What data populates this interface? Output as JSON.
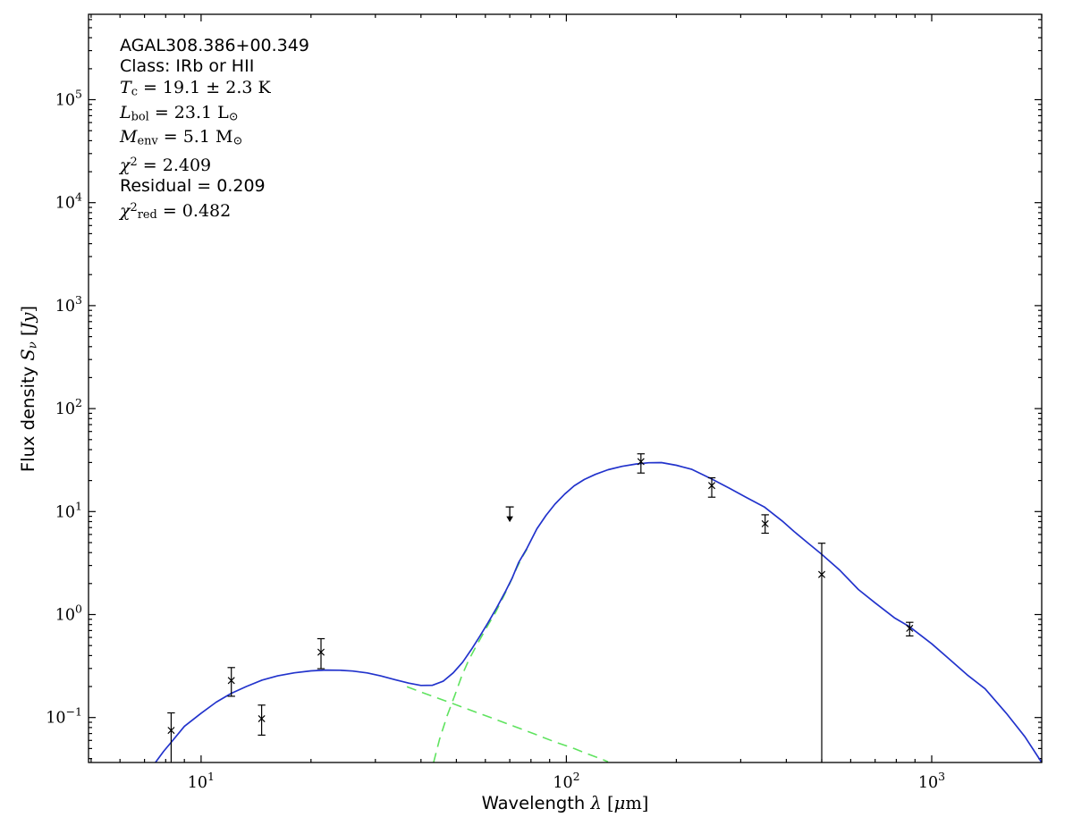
{
  "chart_data": {
    "type": "line",
    "description": "Spectral energy distribution (SED) fit on log-log axes: photometric data points with error bars, one 70um upper limit, blue total two-component greybody model, green dashed warm and cold components.",
    "title": "",
    "xlim": [
      4.92,
      2000
    ],
    "ylim": [
      0.0366,
      675000
    ],
    "grid": false,
    "legend": "none",
    "colors": {
      "total_model": "#2233cc",
      "components": "#5fe35f",
      "data": "#000000",
      "frame": "#000000",
      "background": "#ffffff"
    },
    "x_ticks": [
      {
        "v": 10,
        "base": "10",
        "exp": "1"
      },
      {
        "v": 100,
        "base": "10",
        "exp": "2"
      },
      {
        "v": 1000,
        "base": "10",
        "exp": "3"
      }
    ],
    "y_ticks": [
      {
        "v": 0.1,
        "base": "10",
        "exp": "−1"
      },
      {
        "v": 1,
        "base": "10",
        "exp": "0"
      },
      {
        "v": 10,
        "base": "10",
        "exp": "1"
      },
      {
        "v": 100,
        "base": "10",
        "exp": "2"
      },
      {
        "v": 1000,
        "base": "10",
        "exp": "3"
      },
      {
        "v": 10000,
        "base": "10",
        "exp": "4"
      },
      {
        "v": 100000,
        "base": "10",
        "exp": "5"
      }
    ],
    "xlabel_segments": [
      {
        "t": "Wavelength ",
        "s": "sans"
      },
      {
        "t": "λ",
        "s": "mi"
      },
      {
        "t": " [",
        "s": "mr"
      },
      {
        "t": "μ",
        "s": "mi"
      },
      {
        "t": "m]",
        "s": "mr"
      }
    ],
    "ylabel_segments": [
      {
        "t": "Flux density ",
        "s": "sans"
      },
      {
        "t": "S",
        "s": "mi"
      },
      {
        "t": "ν",
        "s": "subi"
      },
      {
        "t": " [",
        "s": "mr"
      },
      {
        "t": "Jy",
        "s": "mi"
      },
      {
        "t": "]",
        "s": "mr"
      }
    ],
    "annotation": {
      "source": "AGAL308.386+00.349",
      "class": "IRb or HII",
      "T_c": "19.1 ± 2.3 K",
      "L_bol": "23.1 L⊙",
      "M_env": "5.1 M⊙",
      "chi2": 2.409,
      "residual": 0.209,
      "chi2_red": 0.482,
      "lines": [
        [
          {
            "t": "AGAL308.386+00.349",
            "s": "sans"
          }
        ],
        [
          {
            "t": "Class: IRb or HII",
            "s": "sans"
          }
        ],
        [
          {
            "t": "T",
            "s": "mi"
          },
          {
            "t": "c",
            "s": "sub"
          },
          {
            "t": " = 19.1 ± 2.3 K",
            "s": "mr"
          }
        ],
        [
          {
            "t": "L",
            "s": "mi"
          },
          {
            "t": "bol",
            "s": "sub"
          },
          {
            "t": " = 23.1 L",
            "s": "mr"
          },
          {
            "t": "⊙",
            "s": "sub"
          }
        ],
        [
          {
            "t": "M",
            "s": "mi"
          },
          {
            "t": "env",
            "s": "sub"
          },
          {
            "t": " = 5.1 M",
            "s": "mr"
          },
          {
            "t": "⊙",
            "s": "sub"
          }
        ],
        [
          {
            "t": "χ",
            "s": "mi"
          },
          {
            "t": "2",
            "s": "sup"
          },
          {
            "t": " = 2.409",
            "s": "mr"
          }
        ],
        [
          {
            "t": "Residual = 0.209",
            "s": "sans"
          }
        ],
        [
          {
            "t": "χ",
            "s": "mi"
          },
          {
            "t": "2",
            "s": "sup"
          },
          {
            "t": "red",
            "s": "sub"
          },
          {
            "t": " = 0.482",
            "s": "mr"
          }
        ]
      ]
    },
    "data_points": [
      {
        "wl": 8.28,
        "flux": 0.075,
        "err_hi": 0.111,
        "err_lo": null
      },
      {
        "wl": 12.1,
        "flux": 0.229,
        "err_hi": 0.306,
        "err_lo": 0.161
      },
      {
        "wl": 14.65,
        "flux": 0.0975,
        "err_hi": 0.132,
        "err_lo": 0.0675
      },
      {
        "wl": 21.3,
        "flux": 0.431,
        "err_hi": 0.583,
        "err_lo": 0.298
      },
      {
        "wl": 160,
        "flux": 30.6,
        "err_hi": 36.4,
        "err_lo": 23.7
      },
      {
        "wl": 250,
        "flux": 17.9,
        "err_hi": 21.3,
        "err_lo": 13.8
      },
      {
        "wl": 350,
        "flux": 7.62,
        "err_hi": 9.31,
        "err_lo": 6.17
      },
      {
        "wl": 500,
        "flux": 2.45,
        "err_hi": 4.93,
        "err_lo": null
      },
      {
        "wl": 870,
        "flux": 0.736,
        "err_hi": 0.84,
        "err_lo": 0.62
      }
    ],
    "upper_limits": [
      {
        "wl": 70,
        "flux": 11.1
      }
    ],
    "series": [
      {
        "name": "total-model",
        "style": "solid",
        "color_key": "total_model",
        "points": [
          [
            7.5,
            0.0366
          ],
          [
            7.9,
            0.047
          ],
          [
            8.3,
            0.058
          ],
          [
            9,
            0.082
          ],
          [
            10,
            0.11
          ],
          [
            11,
            0.141
          ],
          [
            12.1,
            0.172
          ],
          [
            13.3,
            0.2
          ],
          [
            14.7,
            0.231
          ],
          [
            16.2,
            0.254
          ],
          [
            18,
            0.272
          ],
          [
            20,
            0.284
          ],
          [
            22,
            0.289
          ],
          [
            24,
            0.288
          ],
          [
            26,
            0.283
          ],
          [
            28.5,
            0.271
          ],
          [
            31,
            0.254
          ],
          [
            34,
            0.233
          ],
          [
            37,
            0.216
          ],
          [
            40,
            0.205
          ],
          [
            43,
            0.206
          ],
          [
            46,
            0.225
          ],
          [
            49,
            0.272
          ],
          [
            52,
            0.345
          ],
          [
            55,
            0.46
          ],
          [
            58,
            0.62
          ],
          [
            61,
            0.83
          ],
          [
            64.5,
            1.17
          ],
          [
            68,
            1.66
          ],
          [
            71,
            2.25
          ],
          [
            74,
            3.2
          ],
          [
            78,
            4.4
          ],
          [
            83,
            6.8
          ],
          [
            88,
            9.2
          ],
          [
            93,
            11.8
          ],
          [
            99,
            14.8
          ],
          [
            105,
            17.8
          ],
          [
            112,
            20.5
          ],
          [
            120,
            23
          ],
          [
            130,
            25.5
          ],
          [
            142,
            27.5
          ],
          [
            155,
            29
          ],
          [
            168,
            29.8
          ],
          [
            182,
            29.9
          ],
          [
            200,
            28.2
          ],
          [
            220,
            25.8
          ],
          [
            250,
            20.7
          ],
          [
            280,
            16.8
          ],
          [
            310,
            13.8
          ],
          [
            348,
            11.1
          ],
          [
            390,
            8.1
          ],
          [
            420,
            6.4
          ],
          [
            460,
            4.9
          ],
          [
            500,
            3.85
          ],
          [
            560,
            2.7
          ],
          [
            630,
            1.75
          ],
          [
            700,
            1.3
          ],
          [
            790,
            0.93
          ],
          [
            870,
            0.76
          ],
          [
            1000,
            0.52
          ],
          [
            1107,
            0.38
          ],
          [
            1250,
            0.26
          ],
          [
            1400,
            0.19
          ],
          [
            1600,
            0.11
          ],
          [
            1800,
            0.065
          ],
          [
            2000,
            0.0366
          ]
        ]
      },
      {
        "name": "cold-component",
        "style": "dashed",
        "color_key": "components",
        "points": [
          [
            43.3,
            0.0366
          ],
          [
            45,
            0.062
          ],
          [
            47.2,
            0.105
          ],
          [
            49.5,
            0.165
          ],
          [
            51.6,
            0.248
          ],
          [
            54,
            0.36
          ],
          [
            56.4,
            0.48
          ],
          [
            59,
            0.64
          ],
          [
            61.4,
            0.82
          ],
          [
            64,
            1.05
          ],
          [
            67,
            1.45
          ],
          [
            70,
            2.0
          ],
          [
            73,
            2.8
          ],
          [
            76,
            3.7
          ],
          [
            78,
            4.3
          ]
        ]
      },
      {
        "name": "warm-component",
        "style": "dashed",
        "color_key": "components",
        "points": [
          [
            36.6,
            0.199
          ],
          [
            42,
            0.166
          ],
          [
            48,
            0.14
          ],
          [
            55,
            0.117
          ],
          [
            63,
            0.098
          ],
          [
            72,
            0.082
          ],
          [
            82,
            0.069
          ],
          [
            93,
            0.058
          ],
          [
            105,
            0.05
          ],
          [
            115,
            0.044
          ],
          [
            123,
            0.0403
          ],
          [
            130,
            0.0372
          ]
        ]
      }
    ]
  }
}
